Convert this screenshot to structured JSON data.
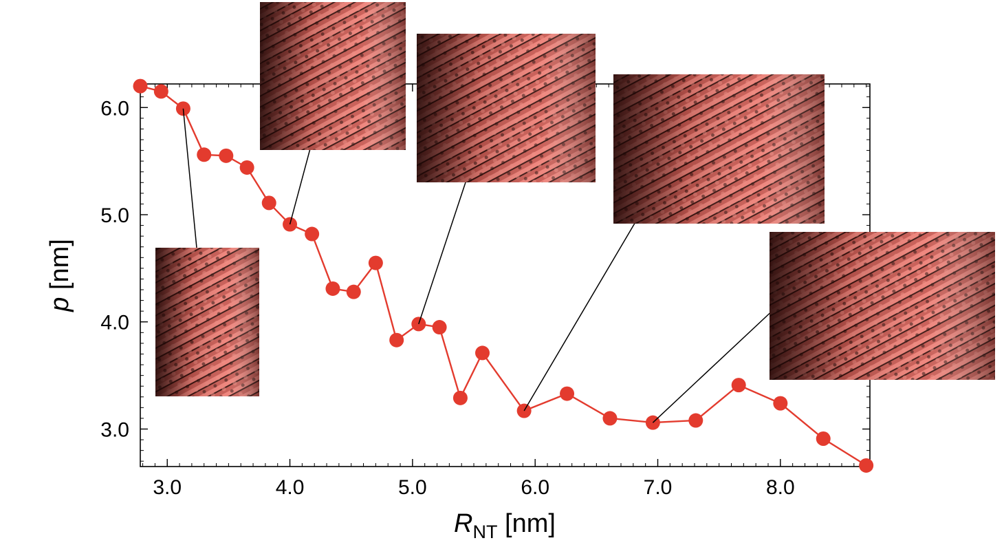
{
  "chart_data": {
    "type": "line",
    "title": "",
    "xlabel": {
      "main": "R",
      "sub": "NT",
      "unit": "[nm]"
    },
    "ylabel": {
      "main": "p",
      "unit": "[nm]"
    },
    "xlim": [
      2.78,
      8.73
    ],
    "ylim": [
      2.65,
      6.22
    ],
    "xticks": [
      "3.0",
      "4.0",
      "5.0",
      "6.0",
      "7.0",
      "8.0"
    ],
    "yticks": [
      "3.0",
      "4.0",
      "5.0",
      "6.0"
    ],
    "grid": false,
    "series": [
      {
        "color": "#e33b2e",
        "x": [
          2.78,
          2.95,
          3.13,
          3.3,
          3.48,
          3.65,
          3.83,
          4.0,
          4.18,
          4.35,
          4.52,
          4.7,
          4.87,
          5.05,
          5.22,
          5.39,
          5.57,
          5.91,
          6.26,
          6.61,
          6.96,
          7.31,
          7.66,
          8.0,
          8.35,
          8.7
        ],
        "y": [
          6.2,
          6.15,
          5.99,
          5.56,
          5.55,
          5.44,
          5.11,
          4.91,
          4.82,
          4.31,
          4.28,
          4.55,
          3.83,
          3.98,
          3.95,
          3.29,
          3.71,
          3.17,
          3.33,
          3.1,
          3.06,
          3.08,
          3.41,
          3.24,
          2.91,
          2.66
        ]
      }
    ],
    "insets": [
      {
        "name": "nanotube-snapshot-r3.1",
        "points_to": [
          3.13,
          5.99
        ]
      },
      {
        "name": "nanotube-snapshot-r4.0",
        "points_to": [
          4.0,
          4.91
        ]
      },
      {
        "name": "nanotube-snapshot-r5.0",
        "points_to": [
          5.05,
          3.98
        ]
      },
      {
        "name": "nanotube-snapshot-r5.9",
        "points_to": [
          5.91,
          3.17
        ]
      },
      {
        "name": "nanotube-snapshot-r7.0",
        "points_to": [
          6.96,
          3.06
        ]
      }
    ],
    "inset_colors": {
      "light": "#e8756b",
      "dark": "#2a0e0b"
    }
  }
}
